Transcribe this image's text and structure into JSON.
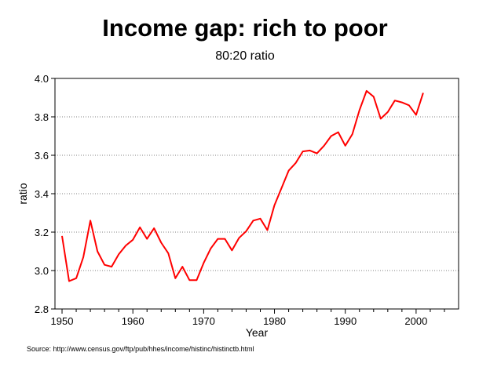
{
  "source": "Source: http://www.census.gov/ftp/pub/hhes/income/histinc/histinctb.html",
  "chart_data": {
    "type": "line",
    "title": "Income gap: rich to poor",
    "subtitle": "80:20 ratio",
    "xlabel": "Year",
    "ylabel": "ratio",
    "xlim": [
      1949,
      2006
    ],
    "ylim": [
      2.8,
      4.0
    ],
    "x_ticks": [
      1950,
      1960,
      1970,
      1980,
      1990,
      2000
    ],
    "y_ticks": [
      "2.8",
      "3.0",
      "3.2",
      "3.4",
      "3.6",
      "3.8",
      "4.0"
    ],
    "grid": "horizontal dotted",
    "line_color": "#ff0000",
    "series": [
      {
        "x": [
          1950,
          1951,
          1952,
          1953,
          1954,
          1955,
          1956,
          1957,
          1958,
          1959,
          1960,
          1961,
          1962,
          1963,
          1964,
          1965,
          1966,
          1967,
          1968,
          1969,
          1970,
          1971,
          1972,
          1973,
          1974,
          1975,
          1976,
          1977,
          1978,
          1979,
          1980,
          1981,
          1982,
          1983,
          1984,
          1985,
          1986,
          1987,
          1988,
          1989,
          1990,
          1991,
          1992,
          1993,
          1994,
          1995,
          1996,
          1997,
          1998,
          1999,
          2000,
          2001
        ],
        "values": [
          3.18,
          2.945,
          2.96,
          3.07,
          3.26,
          3.1,
          3.03,
          3.02,
          3.085,
          3.13,
          3.16,
          3.225,
          3.165,
          3.22,
          3.145,
          3.09,
          2.96,
          3.02,
          2.95,
          2.95,
          3.04,
          3.115,
          3.165,
          3.165,
          3.105,
          3.17,
          3.205,
          3.26,
          3.27,
          3.21,
          3.34,
          3.43,
          3.52,
          3.56,
          3.62,
          3.625,
          3.61,
          3.65,
          3.7,
          3.72,
          3.65,
          3.71,
          3.835,
          3.935,
          3.905,
          3.79,
          3.825,
          3.885,
          3.875,
          3.86,
          3.81,
          3.925
        ]
      }
    ]
  }
}
